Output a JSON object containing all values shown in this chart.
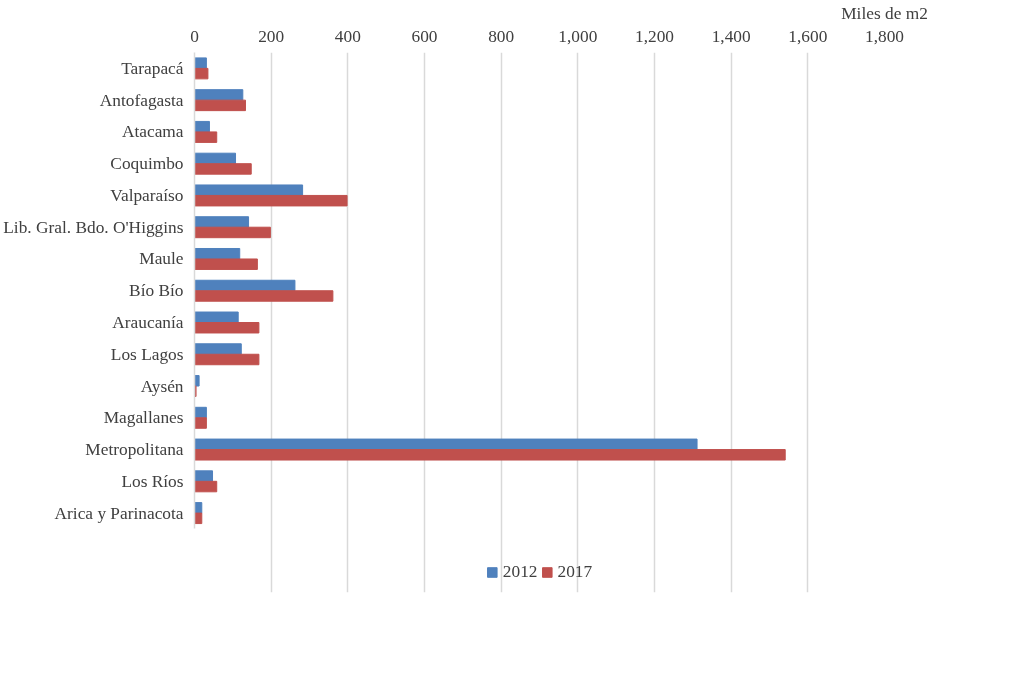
{
  "chart_data": {
    "type": "bar",
    "orientation": "horizontal",
    "xlabel": "Miles de m2",
    "categories": [
      "Tarapacá",
      "Antofagasta",
      "Atacama",
      "Coquimbo",
      "Valparaíso",
      "Lib. Gral. Bdo. O'Higgins",
      "Maule",
      "Bío Bío",
      "Araucanía",
      "Los Lagos",
      "Aysén",
      "Magallanes",
      "Metropolitana",
      "Los Ríos",
      "Arica y Parinacota"
    ],
    "series": [
      {
        "name": "2012",
        "color": "#4f81bd",
        "values": [
          31,
          126,
          39,
          107,
          282,
          141,
          118,
          262,
          114,
          122,
          12,
          31,
          1311,
          47,
          19
        ]
      },
      {
        "name": "2017",
        "color": "#c0504d",
        "values": [
          35,
          133,
          58,
          148,
          398,
          198,
          164,
          361,
          168,
          168,
          4,
          31,
          1541,
          58,
          19
        ]
      }
    ],
    "xlim": [
      0,
      1800
    ],
    "xticks": [
      0,
      200,
      400,
      600,
      800,
      {
        "value": 1000,
        "label": "1,000"
      },
      {
        "value": 1200,
        "label": "1,200"
      },
      {
        "value": 1400,
        "label": "1,400"
      },
      {
        "value": 1600,
        "label": "1,600"
      },
      {
        "value": 1800,
        "label": "1,800"
      }
    ],
    "grid": "x",
    "legend": "bottom"
  }
}
